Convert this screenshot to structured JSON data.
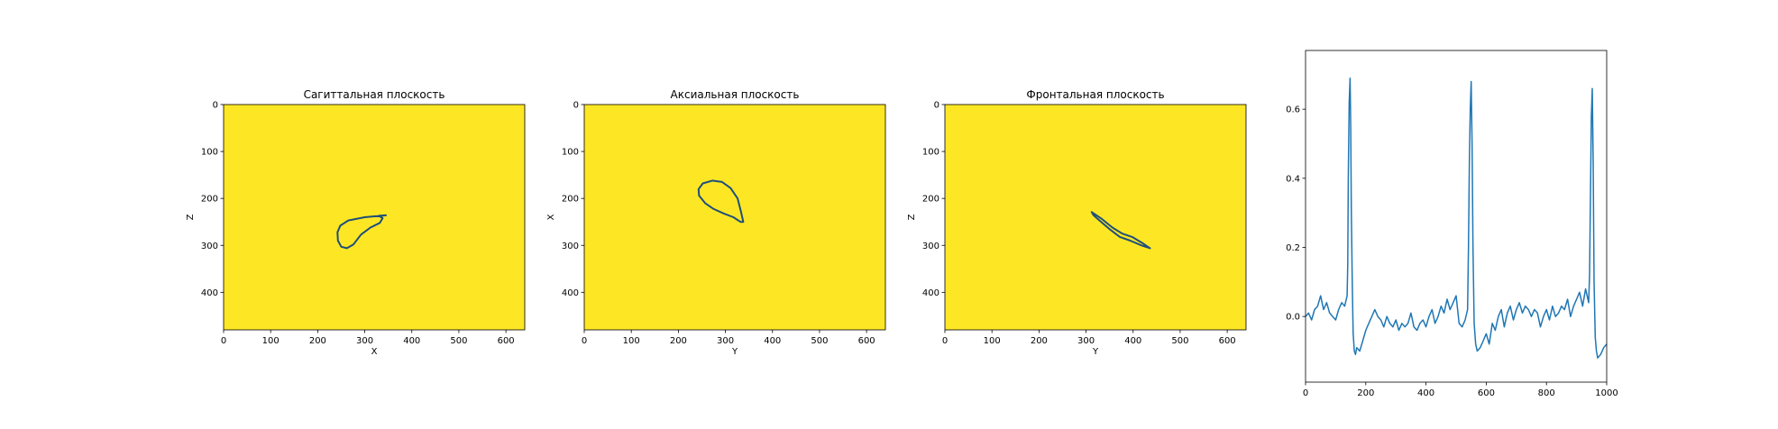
{
  "colors": {
    "image_fill": "#fde725",
    "contour": "#1f4e79",
    "signal": "#1f77b4"
  },
  "chart_data": [
    {
      "type": "heatmap",
      "title": "Сагиттальная плоскость",
      "xlabel": "X",
      "ylabel": "Z",
      "xlim": [
        0,
        640
      ],
      "ylim": [
        480,
        0
      ],
      "xticks": [
        "0",
        "100",
        "200",
        "300",
        "400",
        "500",
        "600"
      ],
      "yticks": [
        "0",
        "100",
        "200",
        "300",
        "400"
      ],
      "contour": [
        [
          345,
          236
        ],
        [
          300,
          240
        ],
        [
          265,
          247
        ],
        [
          248,
          258
        ],
        [
          242,
          272
        ],
        [
          243,
          290
        ],
        [
          250,
          303
        ],
        [
          262,
          306
        ],
        [
          276,
          298
        ],
        [
          292,
          277
        ],
        [
          312,
          262
        ],
        [
          332,
          252
        ],
        [
          338,
          242
        ],
        [
          330,
          237
        ]
      ]
    },
    {
      "type": "heatmap",
      "title": "Аксиальная плоскость",
      "xlabel": "Y",
      "ylabel": "X",
      "xlim": [
        0,
        640
      ],
      "ylim": [
        480,
        0
      ],
      "xticks": [
        "0",
        "100",
        "200",
        "300",
        "400",
        "500",
        "600"
      ],
      "yticks": [
        "0",
        "100",
        "200",
        "300",
        "400"
      ],
      "contour": [
        [
          332,
          250
        ],
        [
          317,
          240
        ],
        [
          296,
          232
        ],
        [
          274,
          222
        ],
        [
          257,
          210
        ],
        [
          244,
          194
        ],
        [
          243,
          180
        ],
        [
          252,
          168
        ],
        [
          272,
          162
        ],
        [
          293,
          165
        ],
        [
          311,
          178
        ],
        [
          326,
          200
        ],
        [
          333,
          228
        ],
        [
          338,
          250
        ]
      ]
    },
    {
      "type": "heatmap",
      "title": "Фронтальная плоскость",
      "xlabel": "Y",
      "ylabel": "Z",
      "xlim": [
        0,
        640
      ],
      "ylim": [
        480,
        0
      ],
      "xticks": [
        "0",
        "100",
        "200",
        "300",
        "400",
        "500",
        "600"
      ],
      "yticks": [
        "0",
        "100",
        "200",
        "300",
        "400"
      ],
      "contour": [
        [
          312,
          229
        ],
        [
          334,
          244
        ],
        [
          356,
          262
        ],
        [
          377,
          275
        ],
        [
          398,
          282
        ],
        [
          418,
          294
        ],
        [
          436,
          306
        ],
        [
          418,
          300
        ],
        [
          394,
          290
        ],
        [
          372,
          282
        ],
        [
          352,
          267
        ],
        [
          332,
          250
        ],
        [
          316,
          236
        ]
      ]
    },
    {
      "type": "line",
      "title": "",
      "xlabel": "",
      "ylabel": "",
      "xlim": [
        0,
        1000
      ],
      "ylim": [
        -0.19,
        0.77
      ],
      "xticks": [
        "0",
        "200",
        "400",
        "600",
        "800",
        "1000"
      ],
      "yticks": [
        "0.0",
        "0.2",
        "0.4",
        "0.6"
      ],
      "series": [
        {
          "x": [
            0,
            10,
            20,
            30,
            40,
            50,
            60,
            70,
            80,
            90,
            100,
            110,
            120,
            130,
            138,
            140,
            142,
            145,
            148,
            150,
            152,
            155,
            158,
            162,
            166,
            170,
            180,
            190,
            200,
            210,
            220,
            230,
            240,
            250,
            260,
            270,
            280,
            290,
            300,
            310,
            320,
            330,
            340,
            350,
            360,
            370,
            380,
            390,
            400,
            410,
            420,
            430,
            440,
            450,
            460,
            470,
            480,
            490,
            500,
            510,
            520,
            530,
            538,
            541,
            544,
            547,
            550,
            553,
            556,
            560,
            565,
            570,
            580,
            590,
            600,
            610,
            620,
            630,
            640,
            650,
            660,
            670,
            680,
            690,
            700,
            710,
            720,
            730,
            740,
            750,
            760,
            770,
            780,
            790,
            800,
            810,
            820,
            830,
            840,
            850,
            860,
            870,
            880,
            890,
            900,
            910,
            920,
            930,
            940,
            943,
            946,
            949,
            952,
            955,
            958,
            962,
            966,
            970,
            980,
            990,
            1000
          ],
          "y": [
            0.0,
            0.01,
            -0.01,
            0.02,
            0.03,
            0.06,
            0.02,
            0.04,
            0.01,
            0.0,
            -0.01,
            0.02,
            0.04,
            0.03,
            0.06,
            0.15,
            0.4,
            0.62,
            0.69,
            0.55,
            0.3,
            0.1,
            -0.05,
            -0.1,
            -0.11,
            -0.09,
            -0.1,
            -0.07,
            -0.04,
            -0.02,
            0.0,
            0.02,
            0.0,
            -0.01,
            -0.03,
            0.0,
            -0.02,
            -0.03,
            -0.01,
            -0.04,
            -0.02,
            -0.03,
            -0.02,
            0.01,
            -0.03,
            -0.04,
            -0.02,
            -0.01,
            -0.03,
            0.0,
            0.02,
            -0.02,
            0.0,
            0.03,
            0.01,
            0.05,
            0.02,
            0.04,
            0.06,
            -0.02,
            -0.03,
            -0.01,
            0.02,
            0.2,
            0.45,
            0.6,
            0.68,
            0.5,
            0.2,
            -0.02,
            -0.08,
            -0.1,
            -0.09,
            -0.07,
            -0.05,
            -0.08,
            -0.02,
            -0.04,
            0.0,
            0.02,
            -0.03,
            0.01,
            0.03,
            -0.01,
            0.02,
            0.04,
            0.01,
            0.03,
            0.02,
            0.0,
            0.02,
            0.01,
            -0.03,
            0.0,
            0.02,
            -0.01,
            0.03,
            0.0,
            0.01,
            0.03,
            0.02,
            0.05,
            0.0,
            0.03,
            0.05,
            0.07,
            0.03,
            0.08,
            0.04,
            0.12,
            0.35,
            0.58,
            0.66,
            0.45,
            0.1,
            -0.06,
            -0.1,
            -0.12,
            -0.11,
            -0.09,
            -0.08
          ]
        }
      ]
    }
  ]
}
